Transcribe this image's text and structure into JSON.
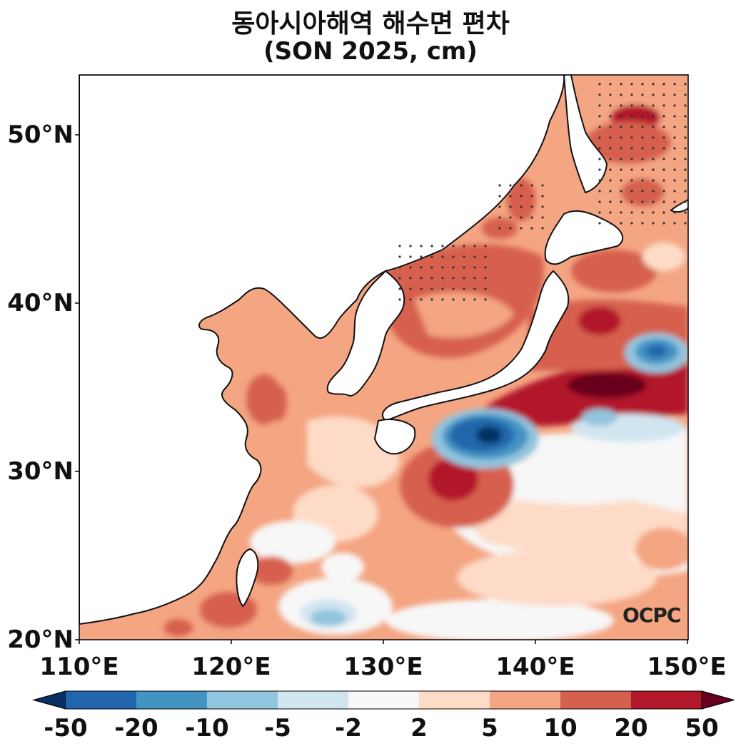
{
  "title": "동아시아해역 해수면 편차",
  "subtitle": "(SON 2025, cm)",
  "logo_text": "OCPC",
  "map_extent": {
    "lon": [
      110,
      150
    ],
    "lat": [
      20,
      53.5
    ]
  },
  "y_ticks": [
    "20°N",
    "30°N",
    "40°N",
    "50°N"
  ],
  "x_ticks": [
    "110°E",
    "120°E",
    "130°E",
    "140°E",
    "150°E"
  ],
  "colorbar": {
    "labels": [
      "-50",
      "-20",
      "-10",
      "-5",
      "-2",
      "2",
      "5",
      "10",
      "20",
      "50"
    ],
    "colors": [
      "#053061",
      "#2166ac",
      "#4393c3",
      "#92c5de",
      "#d1e5f0",
      "#f7f7f7",
      "#fddbc7",
      "#f4a582",
      "#d6604d",
      "#b2182b",
      "#67001f"
    ],
    "extend": "both"
  }
}
